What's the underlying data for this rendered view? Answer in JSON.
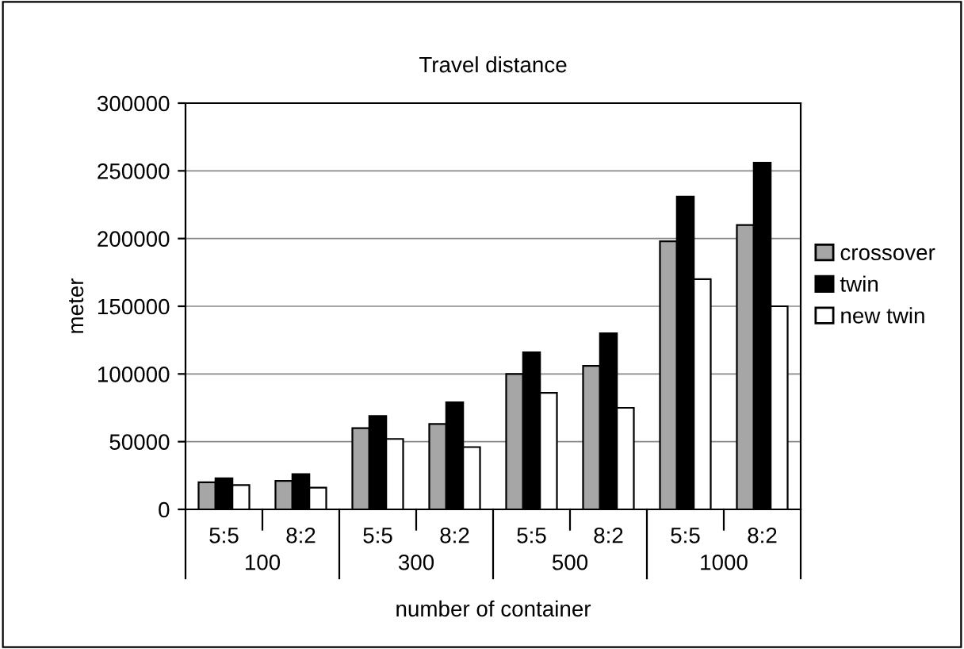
{
  "chart_data": {
    "type": "bar",
    "title": "Travel distance",
    "xlabel": "number of container",
    "ylabel": "meter",
    "categories": [
      "5:5",
      "8:2",
      "5:5",
      "8:2",
      "5:5",
      "8:2",
      "5:5",
      "8:2"
    ],
    "series": [
      {
        "name": "crossover",
        "color": "#a6a6a6",
        "values": [
          20000,
          21000,
          60000,
          63000,
          100000,
          106000,
          198000,
          210000
        ]
      },
      {
        "name": "twin",
        "color": "#000000",
        "values": [
          23000,
          26000,
          69000,
          79000,
          116000,
          130000,
          231000,
          256000
        ]
      },
      {
        "name": "new twin",
        "color": "#ffffff",
        "values": [
          18000,
          16000,
          52000,
          46000,
          86000,
          75000,
          170000,
          150000
        ]
      }
    ],
    "annotations": [
      "100",
      "300",
      "500",
      "1000"
    ],
    "ylim": [
      0,
      300000
    ],
    "yticks": [
      0,
      50000,
      100000,
      150000,
      200000,
      250000,
      300000
    ],
    "grid": "y",
    "legend": "right"
  }
}
